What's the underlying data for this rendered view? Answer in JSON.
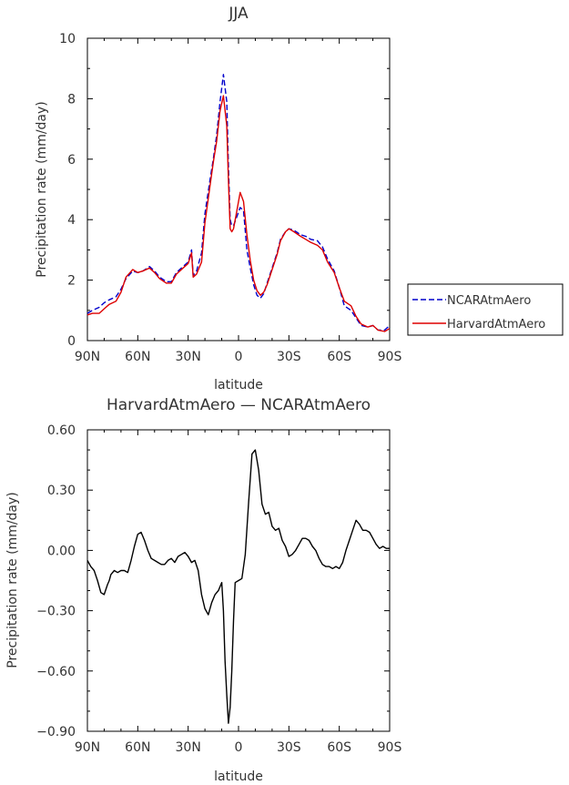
{
  "chart_data": [
    {
      "type": "line",
      "title": "JJA",
      "xlabel": "latitude",
      "ylabel": "Precipitation rate (mm/day)",
      "xlim": [
        90,
        -90
      ],
      "ylim": [
        0,
        10
      ],
      "xtick_values": [
        90,
        60,
        30,
        0,
        -30,
        -60,
        -90
      ],
      "xtick_labels": [
        "90N",
        "60N",
        "30N",
        "0",
        "30S",
        "60S",
        "90S"
      ],
      "ytick_values": [
        0,
        2,
        4,
        6,
        8,
        10
      ],
      "ytick_labels": [
        "0",
        "2",
        "4",
        "6",
        "8",
        "10"
      ],
      "legend_position": "right",
      "series": [
        {
          "name": "NCARAtmAero",
          "color": "#0000cc",
          "dash": "dashed",
          "x": [
            90,
            87,
            83,
            80,
            77,
            73,
            70,
            67,
            63,
            60,
            57,
            53,
            50,
            47,
            43,
            40,
            37,
            33,
            30,
            28,
            27,
            25,
            22,
            20,
            17,
            15,
            13,
            11,
            9,
            7,
            6,
            5,
            4,
            3,
            1,
            -1,
            -3,
            -5,
            -7,
            -9,
            -11,
            -13,
            -15,
            -17,
            -20,
            -23,
            -25,
            -28,
            -30,
            -33,
            -37,
            -40,
            -43,
            -47,
            -50,
            -53,
            -57,
            -60,
            -63,
            -67,
            -70,
            -73,
            -77,
            -80,
            -83,
            -87,
            -90
          ],
          "y": [
            0.9,
            1.0,
            1.1,
            1.25,
            1.35,
            1.45,
            1.7,
            2.05,
            2.3,
            2.25,
            2.3,
            2.45,
            2.3,
            2.1,
            1.95,
            1.95,
            2.25,
            2.45,
            2.6,
            3.0,
            2.15,
            2.3,
            2.9,
            4.2,
            5.3,
            6.0,
            6.8,
            7.9,
            8.8,
            7.9,
            5.8,
            4.0,
            3.8,
            3.8,
            4.1,
            4.4,
            4.3,
            3.0,
            2.4,
            1.85,
            1.5,
            1.4,
            1.55,
            1.9,
            2.4,
            2.9,
            3.35,
            3.6,
            3.7,
            3.65,
            3.5,
            3.45,
            3.35,
            3.3,
            3.1,
            2.7,
            2.3,
            1.75,
            1.15,
            1.0,
            0.75,
            0.5,
            0.45,
            0.5,
            0.35,
            0.35,
            0.5
          ]
        },
        {
          "name": "HarvardAtmAero",
          "color": "#dd0000",
          "dash": "solid",
          "x": [
            90,
            87,
            83,
            80,
            77,
            73,
            70,
            67,
            63,
            60,
            57,
            53,
            50,
            47,
            43,
            40,
            37,
            33,
            30,
            28,
            27,
            25,
            22,
            20,
            17,
            15,
            13,
            11,
            9,
            7,
            6,
            5,
            4,
            3,
            1,
            -1,
            -3,
            -5,
            -7,
            -9,
            -11,
            -13,
            -15,
            -17,
            -20,
            -23,
            -25,
            -28,
            -30,
            -33,
            -37,
            -40,
            -43,
            -47,
            -50,
            -53,
            -57,
            -60,
            -63,
            -67,
            -70,
            -73,
            -77,
            -80,
            -83,
            -87,
            -90
          ],
          "y": [
            0.85,
            0.9,
            0.9,
            1.05,
            1.2,
            1.3,
            1.6,
            2.1,
            2.35,
            2.25,
            2.3,
            2.4,
            2.25,
            2.05,
            1.9,
            1.9,
            2.2,
            2.4,
            2.55,
            2.9,
            2.1,
            2.2,
            2.6,
            3.9,
            5.1,
            5.9,
            6.6,
            7.6,
            8.1,
            7.1,
            5.3,
            3.7,
            3.6,
            3.7,
            4.3,
            4.9,
            4.6,
            3.5,
            2.65,
            2.0,
            1.65,
            1.5,
            1.6,
            1.85,
            2.35,
            2.85,
            3.3,
            3.6,
            3.7,
            3.6,
            3.45,
            3.35,
            3.25,
            3.15,
            3.0,
            2.6,
            2.25,
            1.75,
            1.3,
            1.15,
            0.8,
            0.55,
            0.45,
            0.5,
            0.35,
            0.3,
            0.4
          ]
        }
      ]
    },
    {
      "type": "line",
      "title": "HarvardAtmAero — NCARAtmAero",
      "xlabel": "latitude",
      "ylabel": "Precipitation rate (mm/day)",
      "xlim": [
        90,
        -90
      ],
      "ylim": [
        -0.9,
        0.6
      ],
      "xtick_values": [
        90,
        60,
        30,
        0,
        -30,
        -60,
        -90
      ],
      "xtick_labels": [
        "90N",
        "60N",
        "30N",
        "0",
        "30S",
        "60S",
        "90S"
      ],
      "ytick_values": [
        0.6,
        0.3,
        0.0,
        -0.3,
        -0.6,
        -0.9
      ],
      "ytick_labels": [
        "0.60",
        "0.30",
        "0.00",
        "−0.30",
        "−0.60",
        "−0.90"
      ],
      "series": [
        {
          "color": "#000000",
          "dash": "solid",
          "x": [
            90,
            88,
            86,
            84,
            82,
            80,
            78,
            77,
            76,
            74,
            72,
            70,
            68,
            66,
            64,
            62,
            60,
            58,
            56,
            54,
            52,
            50,
            48,
            46,
            44,
            42,
            40,
            38,
            36,
            34,
            32,
            30,
            28,
            26,
            24,
            22,
            20,
            18,
            16,
            14,
            12,
            10,
            9,
            8,
            7,
            6,
            5,
            4,
            3,
            2,
            0,
            -2,
            -4,
            -6,
            -8,
            -10,
            -12,
            -14,
            -16,
            -18,
            -20,
            -22,
            -24,
            -26,
            -28,
            -30,
            -32,
            -34,
            -36,
            -38,
            -40,
            -42,
            -44,
            -46,
            -48,
            -50,
            -52,
            -54,
            -56,
            -58,
            -60,
            -62,
            -64,
            -66,
            -68,
            -70,
            -72,
            -74,
            -76,
            -78,
            -80,
            -82,
            -84,
            -86,
            -88,
            -90
          ],
          "y": [
            -0.05,
            -0.08,
            -0.1,
            -0.15,
            -0.21,
            -0.22,
            -0.17,
            -0.15,
            -0.12,
            -0.1,
            -0.11,
            -0.1,
            -0.1,
            -0.11,
            -0.05,
            0.02,
            0.08,
            0.09,
            0.05,
            0.0,
            -0.04,
            -0.05,
            -0.06,
            -0.07,
            -0.07,
            -0.05,
            -0.04,
            -0.06,
            -0.03,
            -0.02,
            -0.01,
            -0.03,
            -0.06,
            -0.05,
            -0.1,
            -0.22,
            -0.29,
            -0.32,
            -0.26,
            -0.22,
            -0.2,
            -0.16,
            -0.3,
            -0.55,
            -0.72,
            -0.86,
            -0.78,
            -0.6,
            -0.35,
            -0.16,
            -0.15,
            -0.14,
            -0.02,
            0.24,
            0.48,
            0.5,
            0.4,
            0.23,
            0.18,
            0.19,
            0.12,
            0.1,
            0.11,
            0.05,
            0.02,
            -0.03,
            -0.02,
            0.0,
            0.03,
            0.06,
            0.06,
            0.05,
            0.02,
            0.0,
            -0.04,
            -0.07,
            -0.08,
            -0.08,
            -0.09,
            -0.08,
            -0.09,
            -0.06,
            0.0,
            0.05,
            0.1,
            0.15,
            0.13,
            0.1,
            0.1,
            0.09,
            0.06,
            0.03,
            0.01,
            0.02,
            0.01,
            0.01
          ]
        }
      ]
    }
  ]
}
